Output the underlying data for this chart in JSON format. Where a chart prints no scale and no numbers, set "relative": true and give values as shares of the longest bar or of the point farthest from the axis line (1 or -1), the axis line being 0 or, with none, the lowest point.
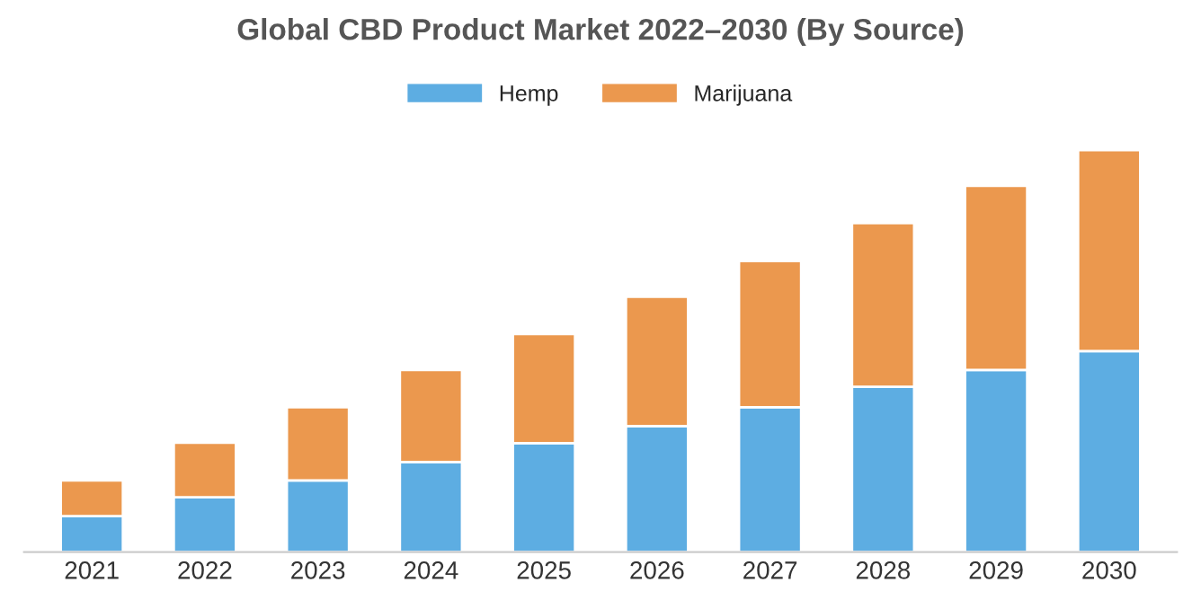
{
  "chart_data": {
    "type": "bar",
    "title": "Global CBD Product Market 2022–2030 (By Source)",
    "categories": [
      "2021",
      "2022",
      "2023",
      "2024",
      "2025",
      "2026",
      "2027",
      "2028",
      "2029",
      "2030"
    ],
    "relative": true,
    "stacked": true,
    "legend": "top",
    "grid": false,
    "series": [
      {
        "name": "Hemp",
        "color": "#5dade2",
        "values": [
          0.089,
          0.136,
          0.178,
          0.224,
          0.271,
          0.313,
          0.36,
          0.411,
          0.453,
          0.5
        ]
      },
      {
        "name": "Marijuana",
        "color": "#eb984e",
        "values": [
          0.089,
          0.136,
          0.182,
          0.229,
          0.271,
          0.322,
          0.364,
          0.407,
          0.458,
          0.5
        ]
      }
    ]
  }
}
